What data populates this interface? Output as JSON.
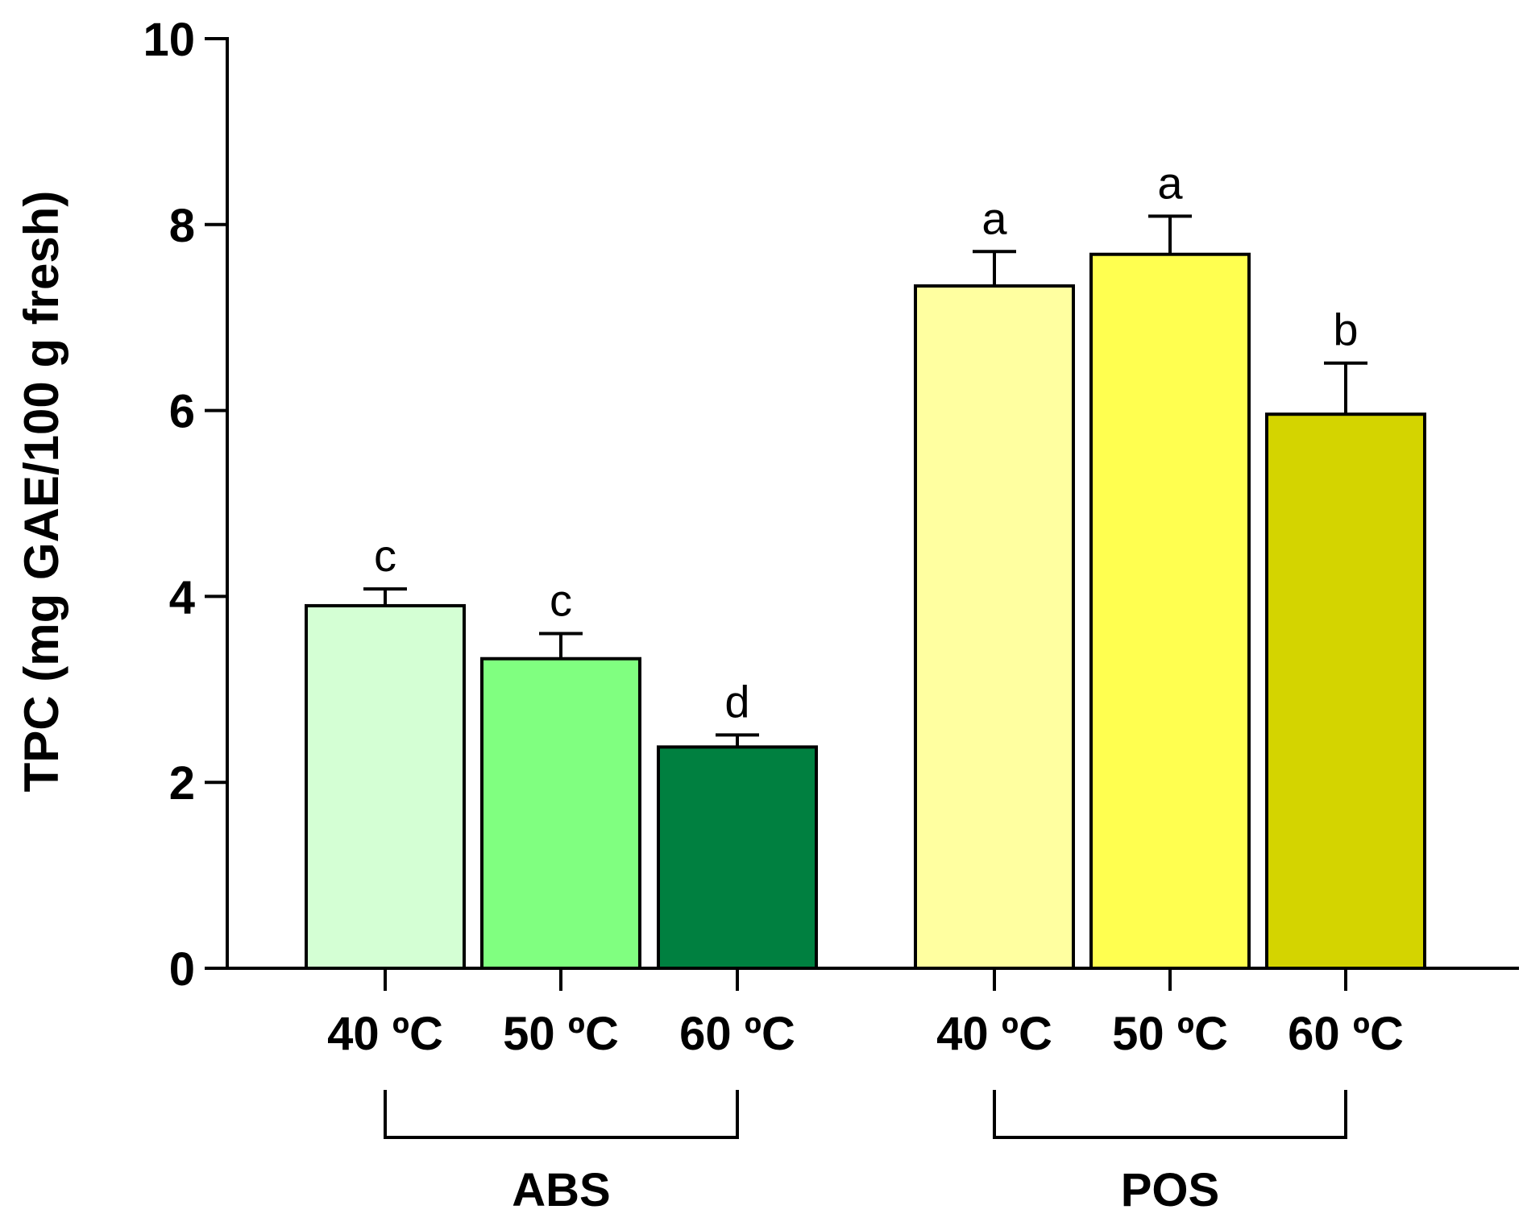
{
  "chart_data": {
    "type": "bar",
    "title": "",
    "xlabel": "",
    "ylabel": "TPC (mg GAE/100 g fresh)",
    "ylim": [
      0,
      10
    ],
    "yticks": [
      "0",
      "2",
      "4",
      "6",
      "8",
      "10"
    ],
    "grid": false,
    "groups": [
      {
        "name": "ABS",
        "bars": [
          {
            "category": "40 ºC",
            "value": 3.9,
            "error": 0.18,
            "letter": "c",
            "color": "#d4ffd4"
          },
          {
            "category": "50 ºC",
            "value": 3.33,
            "error": 0.27,
            "letter": "c",
            "color": "#80ff80"
          },
          {
            "category": "60 ºC",
            "value": 2.38,
            "error": 0.13,
            "letter": "d",
            "color": "#008040"
          }
        ]
      },
      {
        "name": "POS",
        "bars": [
          {
            "category": "40 ºC",
            "value": 7.34,
            "error": 0.37,
            "letter": "a",
            "color": "#ffffa0"
          },
          {
            "category": "50 ºC",
            "value": 7.68,
            "error": 0.41,
            "letter": "a",
            "color": "#ffff50"
          },
          {
            "category": "60 ºC",
            "value": 5.96,
            "error": 0.55,
            "letter": "b",
            "color": "#d4d400"
          }
        ]
      }
    ]
  }
}
